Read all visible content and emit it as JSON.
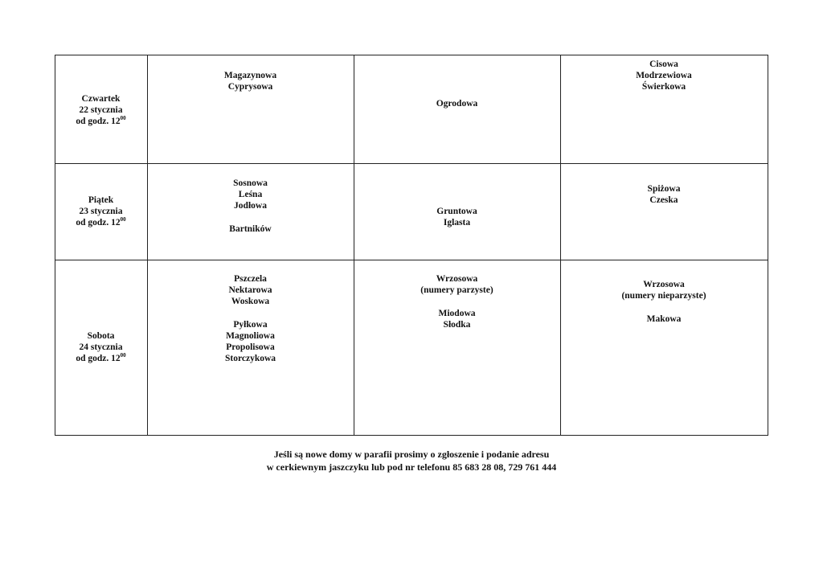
{
  "rows": [
    {
      "day": "Czwartek",
      "date": "22 stycznia",
      "time": "od godz. 12",
      "time_sup": "00",
      "col2": [
        "Magazynowa",
        "Cyprysowa"
      ],
      "col3": [
        "Ogrodowa"
      ],
      "col4": [
        "Cisowa",
        "Modrzewiowa",
        "Świerkowa"
      ]
    },
    {
      "day": "Piątek",
      "date": "23 stycznia",
      "time": "od godz. 12",
      "time_sup": "00",
      "col2": [
        "Sosnowa",
        "Leśna",
        "Jodłowa",
        "",
        "Bartników"
      ],
      "col3": [
        "Gruntowa",
        "Iglasta"
      ],
      "col4": [
        "Spiżowa",
        "Czeska"
      ]
    },
    {
      "day": "Sobota",
      "date": "24 stycznia",
      "time": "od godz. 12",
      "time_sup": "00",
      "col2": [
        "Pszczela",
        "Nektarowa",
        "Woskowa",
        "",
        "Pyłkowa",
        "Magnoliowa",
        "Propolisowa",
        "Storczykowa"
      ],
      "col3": [
        "Wrzosowa",
        "(numery parzyste)",
        "",
        "Miodowa",
        "Słodka"
      ],
      "col4": [
        "Wrzosowa",
        "(numery nieparzyste)",
        "",
        "Makowa"
      ]
    }
  ],
  "footer": {
    "line1": "Jeśli są nowe domy w parafii prosimy o zgłoszenie i podanie adresu",
    "line2": "w cerkiewnym jaszczyku lub pod nr telefonu 85 683 28 08, 729 761 444"
  }
}
